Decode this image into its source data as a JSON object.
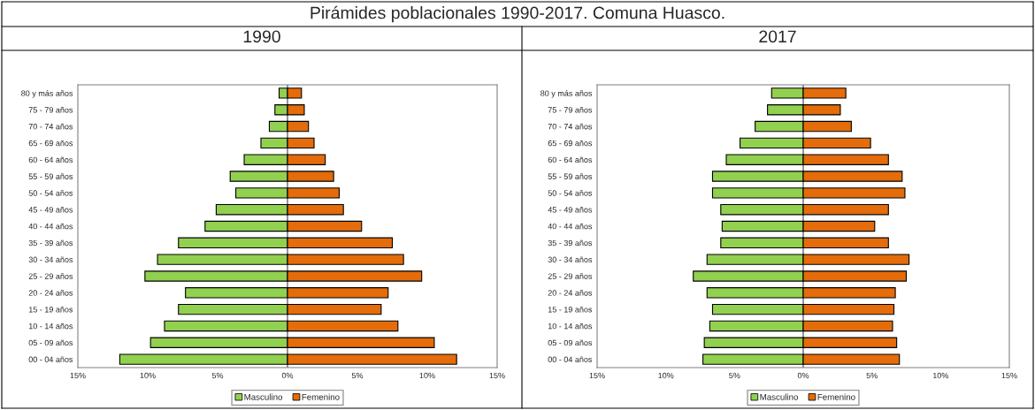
{
  "chart_data": [
    {
      "type": "bar",
      "orientation": "horizontal",
      "title": "Pirámides poblacionales 1990-2017. Comuna Huasco.",
      "subtitle": "1990",
      "categories": [
        "80 y más años",
        "75 - 79 años",
        "70 - 74 años",
        "65 - 69 años",
        "60 - 64 años",
        "55 - 59 años",
        "50 - 54 años",
        "45 - 49 años",
        "40 - 44 años",
        "35 - 39 años",
        "30 - 34 años",
        "25 - 29 años",
        "20 - 24 años",
        "15 - 19 años",
        "10 - 14 años",
        "05 - 09 años",
        "00 - 04 años"
      ],
      "series": [
        {
          "name": "Masculino",
          "color": "#92d050",
          "values": [
            -0.6,
            -0.9,
            -1.3,
            -1.9,
            -3.1,
            -4.1,
            -3.7,
            -5.1,
            -5.9,
            -7.8,
            -9.3,
            -10.2,
            -7.3,
            -7.8,
            -8.8,
            -9.8,
            -12.0
          ]
        },
        {
          "name": "Femenino",
          "color": "#e46c0a",
          "values": [
            1.0,
            1.2,
            1.5,
            1.9,
            2.7,
            3.3,
            3.7,
            4.0,
            5.3,
            7.5,
            8.3,
            9.6,
            7.2,
            6.7,
            7.9,
            10.5,
            12.1
          ]
        }
      ],
      "xlim": [
        -15,
        15
      ],
      "xticks": [
        {
          "value": -15,
          "label": "15%"
        },
        {
          "value": -10,
          "label": "10%"
        },
        {
          "value": -5,
          "label": "5%"
        },
        {
          "value": 0,
          "label": "0%"
        },
        {
          "value": 5,
          "label": "5%"
        },
        {
          "value": 10,
          "label": "10%"
        },
        {
          "value": 15,
          "label": "15%"
        }
      ],
      "grid": false,
      "legend": "bottom",
      "stacked": true,
      "ref_lines": [
        {
          "axis": "x",
          "value": 0
        }
      ]
    },
    {
      "type": "bar",
      "orientation": "horizontal",
      "subtitle": "2017",
      "categories": [
        "80 y más años",
        "75 - 79 años",
        "70 - 74 años",
        "65 - 69 años",
        "60 - 64 años",
        "55 - 59 años",
        "50 - 54 años",
        "45 - 49 años",
        "40 - 44 años",
        "35 - 39 años",
        "30 - 34 años",
        "25 - 29 años",
        "20 - 24 años",
        "15 - 19 años",
        "10 - 14 años",
        "05 - 09 años",
        "00 - 04 años"
      ],
      "series": [
        {
          "name": "Masculino",
          "color": "#92d050",
          "values": [
            -2.3,
            -2.6,
            -3.5,
            -4.6,
            -5.6,
            -6.6,
            -6.6,
            -6.0,
            -5.9,
            -6.0,
            -7.0,
            -8.0,
            -7.0,
            -6.6,
            -6.8,
            -7.2,
            -7.3
          ]
        },
        {
          "name": "Femenino",
          "color": "#e46c0a",
          "values": [
            3.1,
            2.7,
            3.5,
            4.9,
            6.2,
            7.2,
            7.4,
            6.2,
            5.2,
            6.2,
            7.7,
            7.5,
            6.7,
            6.6,
            6.5,
            6.8,
            7.0
          ]
        }
      ],
      "xlim": [
        -15,
        15
      ],
      "xticks": [
        {
          "value": -15,
          "label": "15%"
        },
        {
          "value": -10,
          "label": "10%"
        },
        {
          "value": -5,
          "label": "5%"
        },
        {
          "value": 0,
          "label": "0%"
        },
        {
          "value": 5,
          "label": "5%"
        },
        {
          "value": 10,
          "label": "10%"
        },
        {
          "value": 15,
          "label": "15%"
        }
      ],
      "grid": false,
      "legend": "bottom",
      "stacked": true,
      "ref_lines": [
        {
          "axis": "x",
          "value": 0
        }
      ]
    }
  ]
}
